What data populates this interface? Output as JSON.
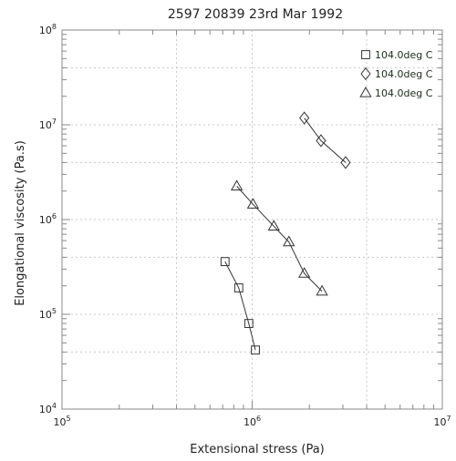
{
  "chart_data": {
    "type": "scatter",
    "title": "2597   20839   23rd Mar 1992",
    "xlabel": "Extensional stress (Pa)",
    "ylabel": "Elongational viscosity (Pa.s)",
    "xscale": "log",
    "yscale": "log",
    "xlim": [
      100000,
      10000000
    ],
    "ylim": [
      10000,
      100000000
    ],
    "grid": true,
    "legend_position": "top-right",
    "x_tick_labels": [
      {
        "value": 100000,
        "base": "10",
        "exp": "5"
      },
      {
        "value": 1000000,
        "base": "10",
        "exp": "6"
      },
      {
        "value": 10000000,
        "base": "10",
        "exp": "7"
      }
    ],
    "y_tick_labels": [
      {
        "value": 10000,
        "base": "10",
        "exp": "4"
      },
      {
        "value": 100000,
        "base": "10",
        "exp": "5"
      },
      {
        "value": 1000000,
        "base": "10",
        "exp": "6"
      },
      {
        "value": 10000000,
        "base": "10",
        "exp": "7"
      },
      {
        "value": 100000000,
        "base": "10",
        "exp": "8"
      }
    ],
    "series": [
      {
        "name": "104.0deg C",
        "marker": "square",
        "x": [
          720000,
          850000,
          960000,
          1040000
        ],
        "y": [
          360000,
          190000,
          80000,
          42000
        ]
      },
      {
        "name": "104.0deg C",
        "marker": "diamond",
        "x": [
          1880000,
          2300000,
          3100000
        ],
        "y": [
          11800000,
          6800000,
          4000000
        ]
      },
      {
        "name": "104.0deg C",
        "marker": "triangle",
        "x": [
          830000,
          1010000,
          1300000,
          1560000,
          1880000,
          2330000
        ],
        "y": [
          2250000,
          1450000,
          850000,
          580000,
          270000,
          175000
        ]
      }
    ]
  }
}
